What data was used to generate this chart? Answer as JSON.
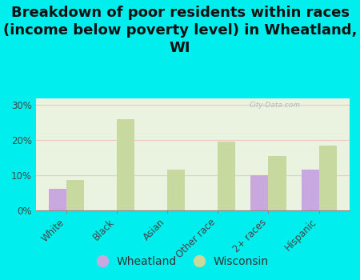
{
  "title": "Breakdown of poor residents within races\n(income below poverty level) in Wheatland,\nWI",
  "categories": [
    "White",
    "Black",
    "Asian",
    "Other race",
    "2+ races",
    "Hispanic"
  ],
  "wheatland_values": [
    6.0,
    0.0,
    0.0,
    0.0,
    10.0,
    11.5
  ],
  "wisconsin_values": [
    8.5,
    26.0,
    11.5,
    19.5,
    15.5,
    18.5
  ],
  "wheatland_color": "#c9a8e0",
  "wisconsin_color": "#c8d9a0",
  "background_outer": "#00eeee",
  "background_inner": "#eaf2e0",
  "grid_color": "#f0c8c8",
  "yticks": [
    0,
    10,
    20,
    30
  ],
  "ytick_labels": [
    "0%",
    "10%",
    "20%",
    "30%"
  ],
  "ylim": [
    0,
    32
  ],
  "bar_width": 0.35,
  "title_fontsize": 13,
  "tick_fontsize": 8.5,
  "legend_fontsize": 10,
  "watermark_text": "City-Data.com"
}
